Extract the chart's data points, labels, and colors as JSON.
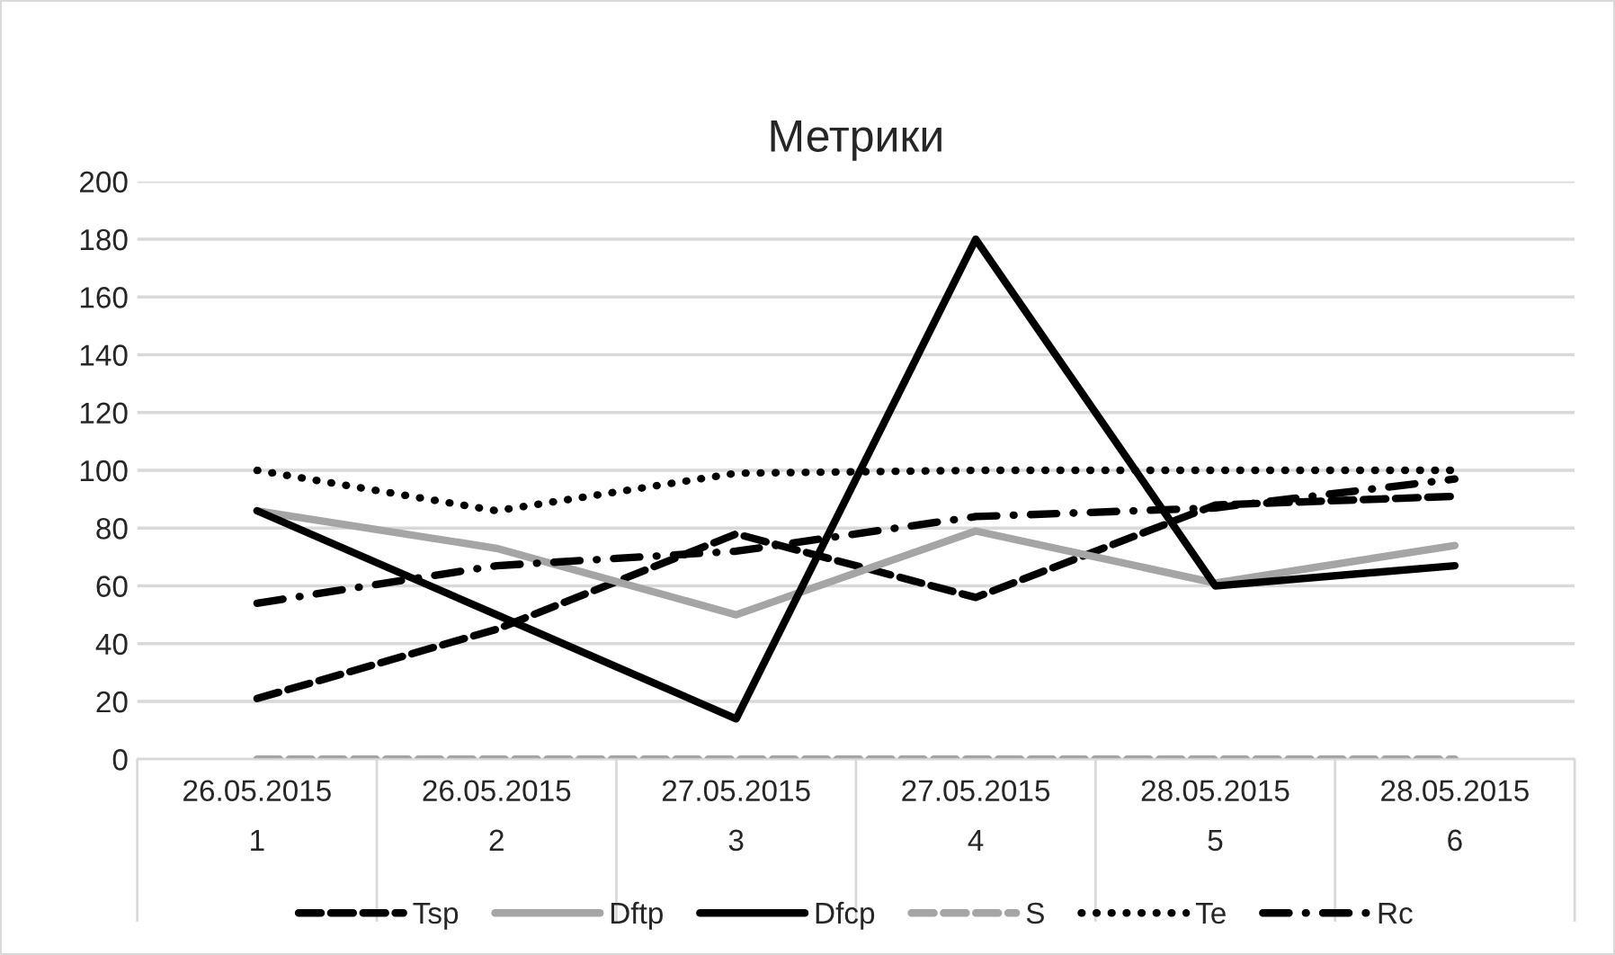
{
  "chart_data": {
    "type": "line",
    "title": "Метрики",
    "categories": [
      "26.05.2015\n1",
      "26.05.2015\n2",
      "27.05.2015\n3",
      "27.05.2015\n4",
      "28.05.2015\n5",
      "28.05.2015\n6"
    ],
    "series": [
      {
        "name": "Tsp",
        "color": "#000000",
        "line_style": "dashed",
        "values": [
          21,
          45,
          78,
          56,
          88,
          91
        ]
      },
      {
        "name": "Dftp",
        "color": "#a5a5a5",
        "line_style": "solid",
        "values": [
          86,
          73,
          50,
          79,
          61,
          74
        ]
      },
      {
        "name": "Dfcp",
        "color": "#000000",
        "line_style": "solid",
        "values": [
          86,
          50,
          14,
          180,
          60,
          67
        ]
      },
      {
        "name": "S",
        "color": "#a5a5a5",
        "line_style": "dashed",
        "values": [
          0,
          0,
          0,
          0,
          0,
          0
        ]
      },
      {
        "name": "Te",
        "color": "#000000",
        "line_style": "dotted",
        "values": [
          100,
          86,
          99,
          100,
          100,
          100
        ]
      },
      {
        "name": "Rc",
        "color": "#000000",
        "line_style": "dashdot",
        "values": [
          54,
          67,
          72,
          84,
          87,
          97
        ]
      }
    ],
    "ylim": [
      0,
      200
    ],
    "yticks": [
      0,
      20,
      40,
      60,
      80,
      100,
      120,
      140,
      160,
      180,
      200
    ],
    "grid": "y",
    "legend": "bottom"
  }
}
